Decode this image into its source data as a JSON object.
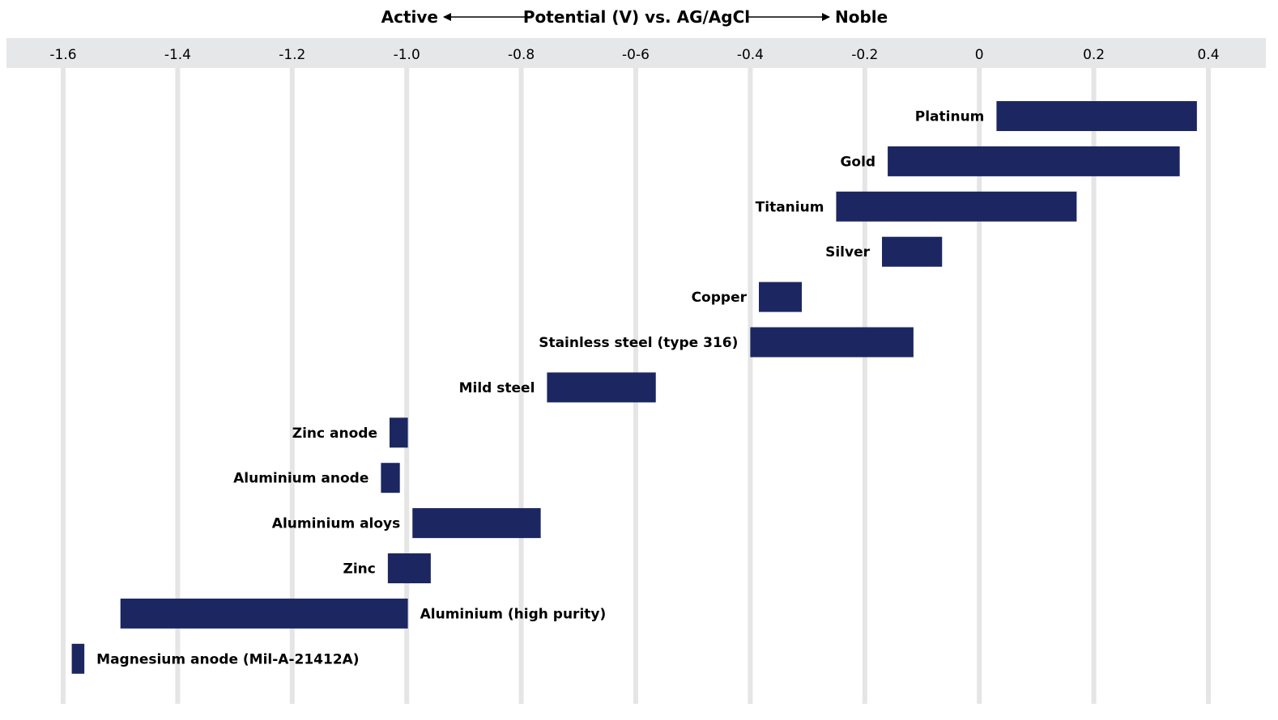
{
  "chart_data": {
    "type": "bar",
    "orientation": "horizontal-range",
    "title": {
      "left": "Active",
      "center": "Potential (V) vs. AG/AgCl",
      "right": "Noble"
    },
    "xlim": [
      -1.6,
      0.4
    ],
    "x_ticks": [
      "-1.6",
      "-1.4",
      "-1.2",
      "-1.0",
      "-0.8",
      "-0-6",
      "-0.4",
      "-0.2",
      "0",
      "0.2",
      "0.4"
    ],
    "x_tick_values": [
      -1.6,
      -1.4,
      -1.2,
      -1.0,
      -0.8,
      -0.6,
      -0.4,
      -0.2,
      0,
      0.2,
      0.4
    ],
    "grid": true,
    "bar_color": "#1c2761",
    "grid_color": "#e5e5e6",
    "axis_band_color": "#e6e7e8",
    "series": [
      {
        "label": "Platinum",
        "min": 0.03,
        "max": 0.38,
        "label_side": "left"
      },
      {
        "label": "Gold",
        "min": -0.16,
        "max": 0.35,
        "label_side": "left"
      },
      {
        "label": "Titanium",
        "min": -0.25,
        "max": 0.17,
        "label_side": "left"
      },
      {
        "label": "Silver",
        "min": -0.17,
        "max": -0.065,
        "label_side": "left"
      },
      {
        "label": "Copper",
        "min": -0.385,
        "max": -0.31,
        "label_side": "left"
      },
      {
        "label": "Stainless steel (type 316)",
        "min": -0.4,
        "max": -0.115,
        "label_side": "left"
      },
      {
        "label": "Mild steel",
        "min": -0.755,
        "max": -0.565,
        "label_side": "left"
      },
      {
        "label": "Zinc anode",
        "min": -1.03,
        "max": -0.998,
        "label_side": "left"
      },
      {
        "label": "Aluminium anode",
        "min": -1.045,
        "max": -1.012,
        "label_side": "left"
      },
      {
        "label": "Aluminium aloys",
        "min": -0.99,
        "max": -0.766,
        "label_side": "left"
      },
      {
        "label": "Zinc",
        "min": -1.033,
        "max": -0.958,
        "label_side": "left"
      },
      {
        "label": "Aluminium (high purity)",
        "min": -1.5,
        "max": -0.998,
        "label_side": "right"
      },
      {
        "label": "Magnesium anode (Mil-A-21412A)",
        "min": -1.585,
        "max": -1.563,
        "label_side": "right"
      }
    ]
  }
}
